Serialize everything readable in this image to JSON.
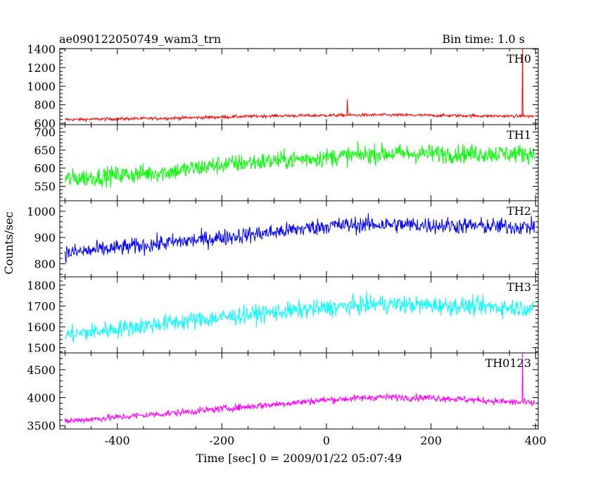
{
  "header": {
    "title": "ae090122050749_wam3_trn",
    "bin_time": "Bin time: 1.0 s"
  },
  "axes": {
    "ylabel": "Counts/sec",
    "xlabel": "Time [sec] 0 = 2009/01/22 05:07:49"
  },
  "chart_data": {
    "type": "line",
    "title": "ae090122050749_wam3_trn",
    "xlabel": "Time [sec] 0 = 2009/01/22 05:07:49",
    "ylabel": "Counts/sec",
    "xlim": [
      -510,
      405
    ],
    "x_ticks": [
      -400,
      -200,
      0,
      200,
      400
    ],
    "x_start": -500,
    "x_step": 1.0,
    "x_end": 398,
    "panels": [
      {
        "name": "TH0",
        "color": "#ff0000",
        "ylim": [
          585,
          1405
        ],
        "y_ticks": [
          600,
          800,
          1000,
          1200,
          1400
        ],
        "trend": [
          [
            -500,
            640
          ],
          [
            -300,
            655
          ],
          [
            -100,
            680
          ],
          [
            100,
            690
          ],
          [
            398,
            675
          ]
        ],
        "noise_amplitude": 30,
        "spikes": [
          [
            40,
            860
          ],
          [
            375,
            1400
          ]
        ]
      },
      {
        "name": "TH1",
        "color": "#00ff00",
        "ylim": [
          510,
          720
        ],
        "y_ticks": [
          550,
          600,
          650,
          700
        ],
        "trend": [
          [
            -500,
            570
          ],
          [
            -300,
            590
          ],
          [
            -200,
            610
          ],
          [
            0,
            630
          ],
          [
            100,
            640
          ],
          [
            398,
            640
          ]
        ],
        "noise_amplitude": 45,
        "spikes": []
      },
      {
        "name": "TH2",
        "color": "#0000ff",
        "ylim": [
          750,
          1040
        ],
        "y_ticks": [
          800,
          900,
          1000
        ],
        "trend": [
          [
            -500,
            840
          ],
          [
            -300,
            880
          ],
          [
            -100,
            920
          ],
          [
            0,
            945
          ],
          [
            100,
            950
          ],
          [
            398,
            940
          ]
        ],
        "noise_amplitude": 55,
        "spikes": []
      },
      {
        "name": "TH3",
        "color": "#00ffff",
        "ylim": [
          1475,
          1840
        ],
        "y_ticks": [
          1500,
          1600,
          1700,
          1800
        ],
        "trend": [
          [
            -500,
            1560
          ],
          [
            -300,
            1620
          ],
          [
            -100,
            1670
          ],
          [
            0,
            1690
          ],
          [
            100,
            1710
          ],
          [
            398,
            1690
          ]
        ],
        "noise_amplitude": 75,
        "spikes": []
      },
      {
        "name": "TH0123",
        "color": "#ff00ff",
        "ylim": [
          3440,
          4800
        ],
        "y_ticks": [
          3500,
          4000,
          4500
        ],
        "trend": [
          [
            -500,
            3580
          ],
          [
            -300,
            3720
          ],
          [
            -100,
            3880
          ],
          [
            0,
            3960
          ],
          [
            100,
            4010
          ],
          [
            200,
            4000
          ],
          [
            398,
            3900
          ]
        ],
        "noise_amplitude": 110,
        "spikes": [
          [
            375,
            4800
          ]
        ]
      }
    ]
  }
}
